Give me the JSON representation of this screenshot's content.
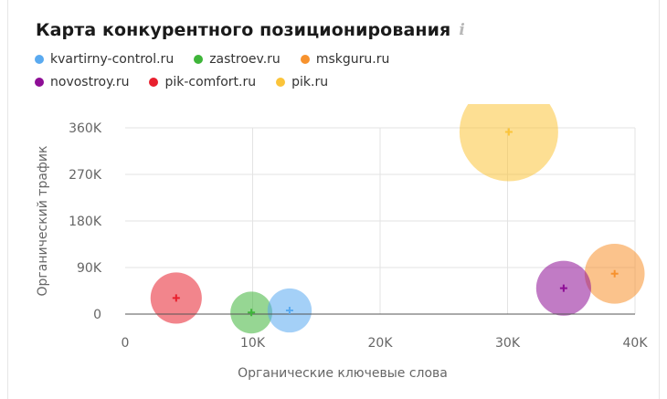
{
  "header": {
    "title": "Карта конкурентного позиционирования",
    "info_icon": "info-icon"
  },
  "chart_data": {
    "type": "scatter",
    "title": "Карта конкурентного позиционирования",
    "xlabel": "Органические ключевые слова",
    "ylabel": "Органический трафик",
    "xlim": [
      0,
      40000
    ],
    "ylim": [
      0,
      360000
    ],
    "x_ticks": [
      "0",
      "10K",
      "20K",
      "30K",
      "40K"
    ],
    "y_ticks": [
      "0",
      "90K",
      "180K",
      "270K",
      "360K"
    ],
    "grid": true,
    "legend_position": "top-left",
    "series": [
      {
        "name": "kvartirny-control.ru",
        "color": "#5aaaf0",
        "x": 12900,
        "y": 7000,
        "bubble_size": 0.2
      },
      {
        "name": "zastroev.ru",
        "color": "#3fb53a",
        "x": 9900,
        "y": 3000,
        "bubble_size": 0.18
      },
      {
        "name": "mskguru.ru",
        "color": "#f7922e",
        "x": 38400,
        "y": 78000,
        "bubble_size": 0.37
      },
      {
        "name": "novostroy.ru",
        "color": "#8e0e96",
        "x": 34400,
        "y": 50000,
        "bubble_size": 0.31
      },
      {
        "name": "pik-comfort.ru",
        "color": "#e8202e",
        "x": 4000,
        "y": 31000,
        "bubble_size": 0.27
      },
      {
        "name": "pik.ru",
        "color": "#fbc43a",
        "x": 30100,
        "y": 352000,
        "bubble_size": 1.0
      }
    ]
  }
}
